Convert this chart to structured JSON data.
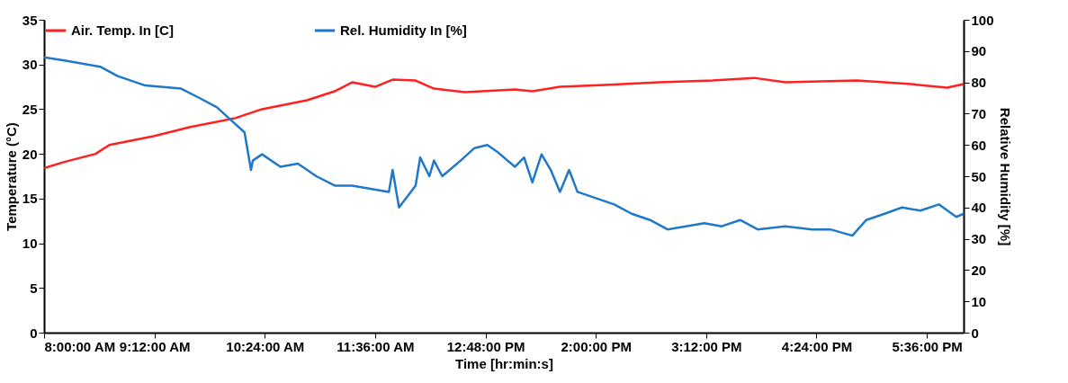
{
  "chart_data": {
    "type": "line",
    "xlabel": "Time [hr:min:s]",
    "ylabel": "Temperature (°C)",
    "y2label": "Relative Humidity  [%]",
    "xlim": [
      8,
      18
    ],
    "xticks": [
      {
        "value": 8,
        "label": "8:00:00 AM"
      },
      {
        "value": 9.2,
        "label": "9:12:00 AM"
      },
      {
        "value": 10.4,
        "label": "10:24:00 AM"
      },
      {
        "value": 11.6,
        "label": "11:36:00 AM"
      },
      {
        "value": 12.8,
        "label": "12:48:00 PM"
      },
      {
        "value": 14,
        "label": "2:00:00 PM"
      },
      {
        "value": 15.2,
        "label": "3:12:00 PM"
      },
      {
        "value": 16.4,
        "label": "4:24:00 PM"
      },
      {
        "value": 17.6,
        "label": "5:36:00 PM"
      }
    ],
    "ylim": [
      0,
      35
    ],
    "yticks": [
      0,
      5,
      10,
      15,
      20,
      25,
      30,
      35
    ],
    "y2lim": [
      0,
      100
    ],
    "y2ticks": [
      0,
      10,
      20,
      30,
      40,
      50,
      60,
      70,
      80,
      90,
      100
    ],
    "legend": "top",
    "grid": false,
    "line_style": "solid",
    "marker": "none",
    "series": [
      {
        "name": "Air. Temp. In [C]",
        "color": "#ff2020",
        "x": [
          8.0,
          8.22,
          8.56,
          8.71,
          9.2,
          9.59,
          10.08,
          10.37,
          10.86,
          11.16,
          11.35,
          11.6,
          11.79,
          12.04,
          12.24,
          12.58,
          13.12,
          13.31,
          13.61,
          14.1,
          14.69,
          15.27,
          15.72,
          16.06,
          16.84,
          17.43,
          17.82,
          18.0
        ],
        "values": [
          18.4,
          19.1,
          20.0,
          21.0,
          22.0,
          23.0,
          24.0,
          25.0,
          26.0,
          27.0,
          28.0,
          27.5,
          28.3,
          28.2,
          27.3,
          26.9,
          27.2,
          27.0,
          27.5,
          27.7,
          28.0,
          28.2,
          28.5,
          28.0,
          28.2,
          27.8,
          27.4,
          27.8
        ]
      },
      {
        "name": "Rel. Humidity In [%]",
        "color": "#1f78c8",
        "axis": "y2",
        "x": [
          8.0,
          8.22,
          8.61,
          8.8,
          9.1,
          9.49,
          9.69,
          9.88,
          10.03,
          10.18,
          10.25,
          10.27,
          10.37,
          10.57,
          10.76,
          10.96,
          11.16,
          11.35,
          11.55,
          11.75,
          11.79,
          11.86,
          12.04,
          12.09,
          12.19,
          12.24,
          12.33,
          12.53,
          12.68,
          12.82,
          12.92,
          13.12,
          13.22,
          13.31,
          13.41,
          13.51,
          13.61,
          13.71,
          13.8,
          14.0,
          14.2,
          14.39,
          14.59,
          14.78,
          14.98,
          15.18,
          15.37,
          15.57,
          15.76,
          16.06,
          16.35,
          16.55,
          16.79,
          16.94,
          17.14,
          17.33,
          17.53,
          17.73,
          17.92,
          18.0
        ],
        "values": [
          88,
          87,
          85,
          82,
          79,
          78,
          75,
          72,
          68,
          64,
          52,
          55,
          57,
          53,
          54,
          50,
          47,
          47,
          46,
          45,
          52,
          40,
          47,
          56,
          50,
          55,
          50,
          55,
          59,
          60,
          58,
          53,
          56,
          48,
          57,
          52,
          45,
          52,
          45,
          43,
          41,
          38,
          36,
          33,
          34,
          35,
          34,
          36,
          33,
          34,
          33,
          33,
          31,
          36,
          38,
          40,
          39,
          41,
          37,
          38
        ]
      }
    ]
  }
}
